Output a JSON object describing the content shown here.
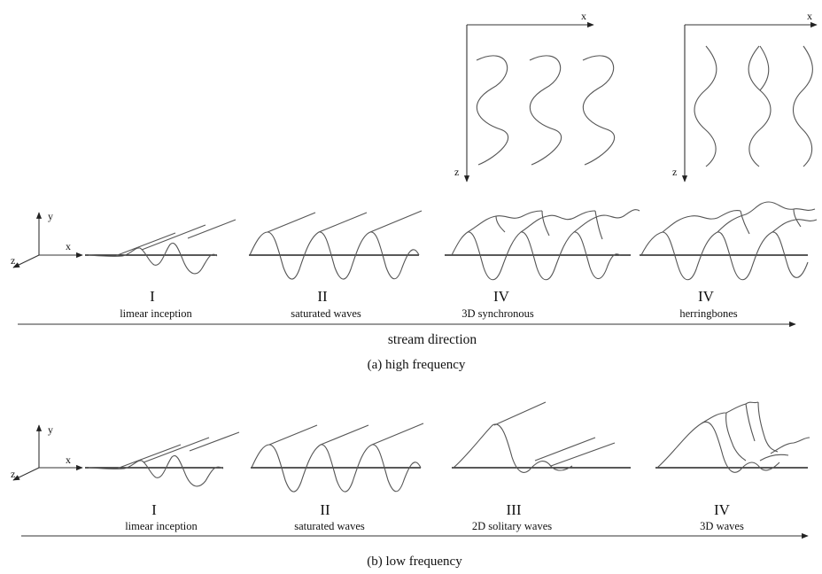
{
  "axes": {
    "x": "x",
    "y": "y",
    "z": "z"
  },
  "panel_a": {
    "caption": "(a) high frequency",
    "stream_direction": "stream direction",
    "stages": [
      {
        "numeral": "I",
        "label": "limear inception"
      },
      {
        "numeral": "II",
        "label": "saturated waves"
      },
      {
        "numeral": "IV",
        "label": "3D synchronous"
      },
      {
        "numeral": "IV",
        "label": "herringbones"
      }
    ]
  },
  "panel_b": {
    "caption": "(b) low frequency",
    "stages": [
      {
        "numeral": "I",
        "label": "limear inception"
      },
      {
        "numeral": "II",
        "label": "saturated waves"
      },
      {
        "numeral": "III",
        "label": "2D solitary waves"
      },
      {
        "numeral": "IV",
        "label": "3D waves"
      }
    ]
  }
}
